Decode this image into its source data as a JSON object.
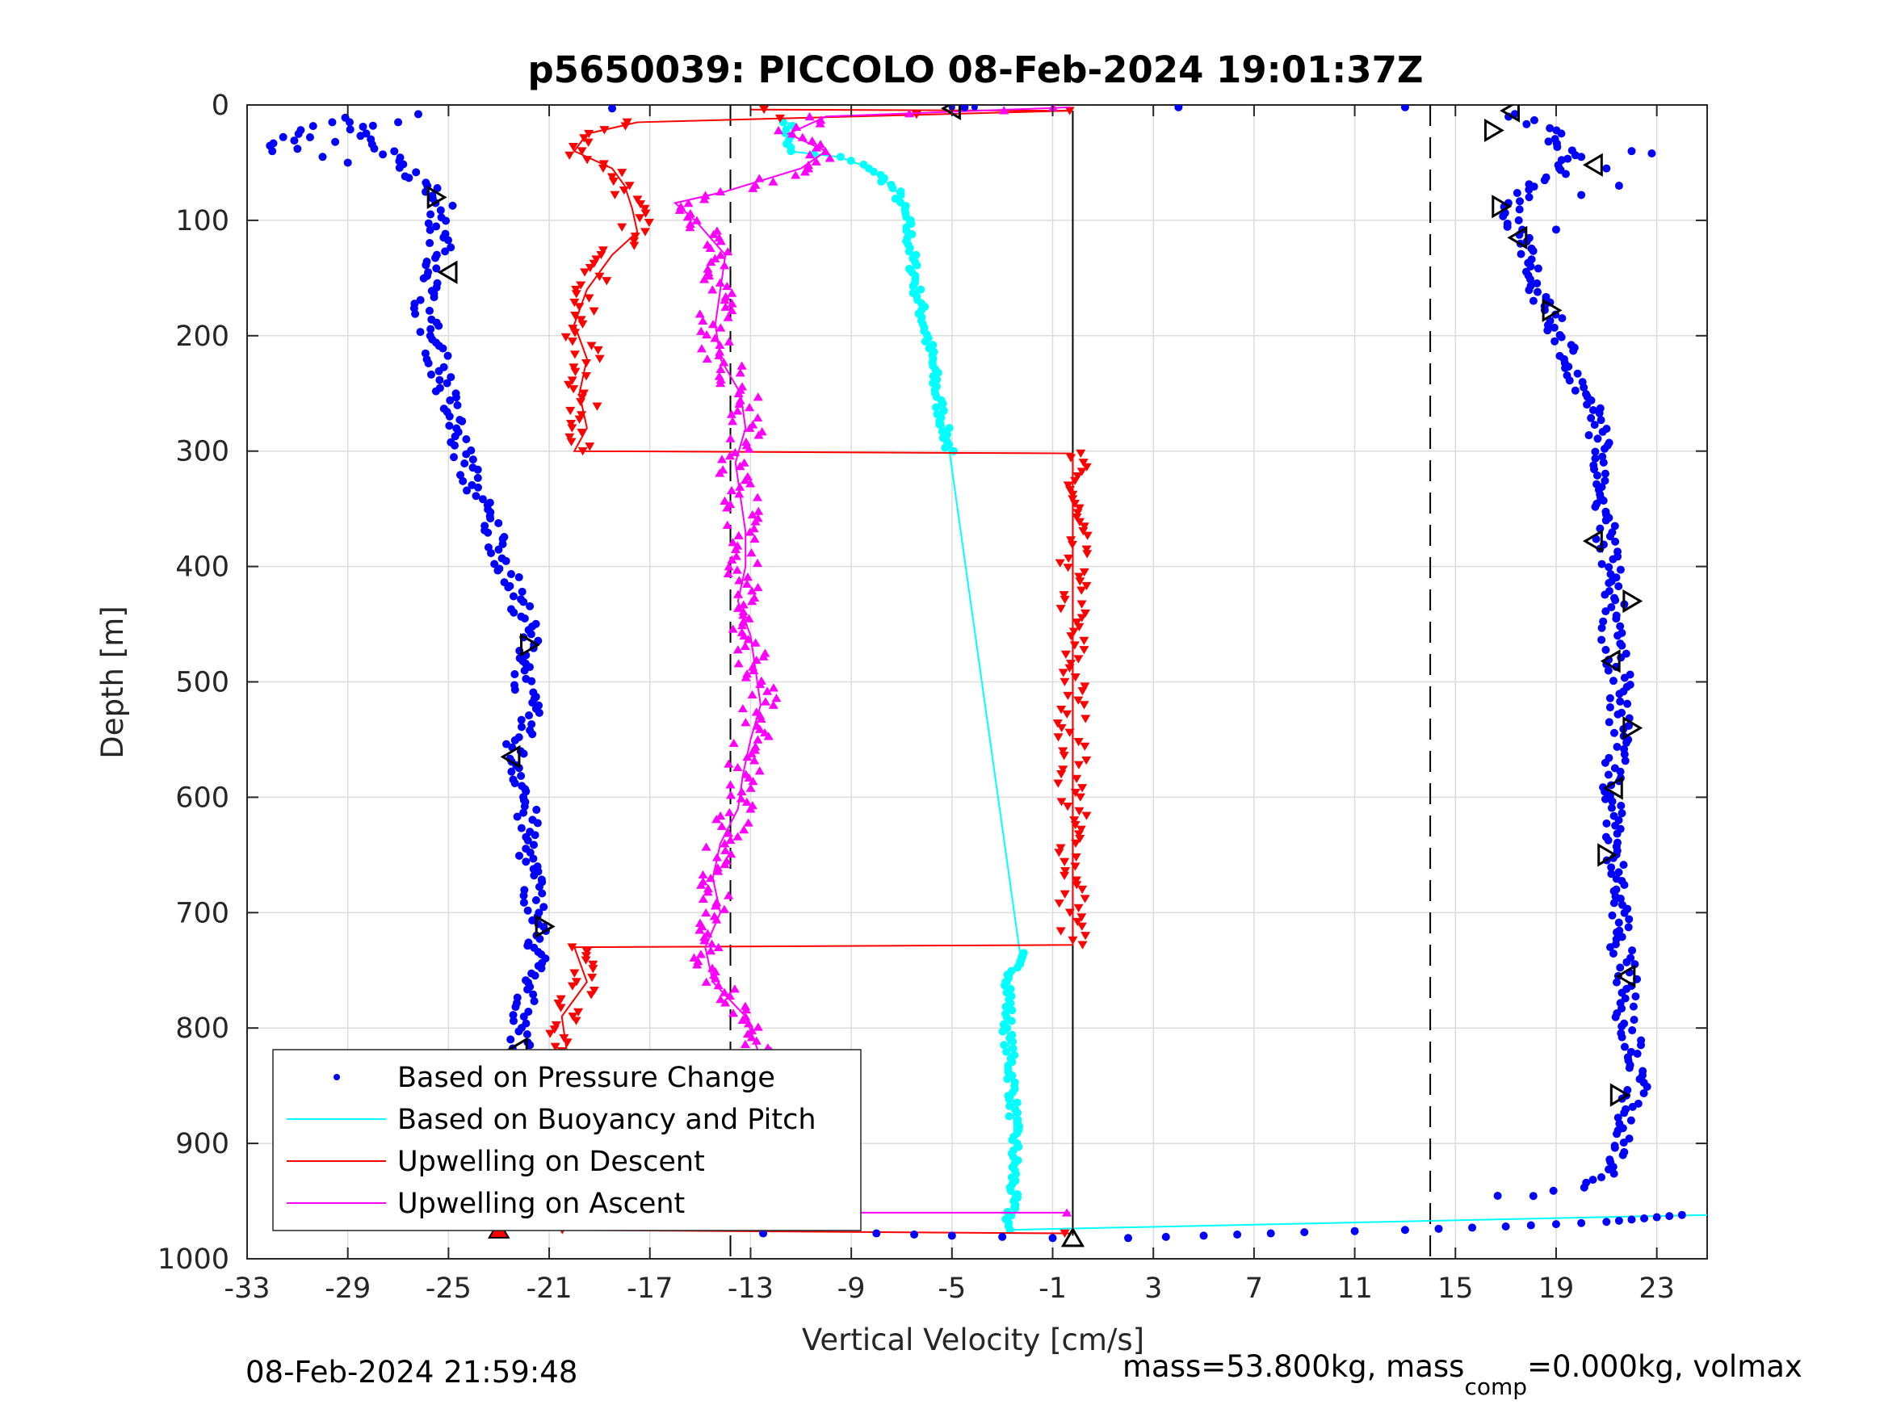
{
  "chart_data": {
    "type": "scatter",
    "title": "p5650039: PICCOLO 08-Feb-2024 19:01:37Z",
    "xlabel": "Vertical Velocity [cm/s]",
    "ylabel": "Depth [m]",
    "xlim": [
      -33,
      25
    ],
    "ylim": [
      0,
      1000
    ],
    "y_reversed": true,
    "x_ticks": [
      -33,
      -29,
      -25,
      -21,
      -17,
      -13,
      -9,
      -5,
      -1,
      3,
      7,
      11,
      15,
      19,
      23
    ],
    "y_ticks": [
      0,
      100,
      200,
      300,
      400,
      500,
      600,
      700,
      800,
      900,
      1000
    ],
    "grid": true,
    "legend_position": "bottom-left",
    "reference_lines": [
      {
        "x": -13.8,
        "style": "dashed",
        "color": "#000000"
      },
      {
        "x": 14.0,
        "style": "dashed",
        "color": "#000000"
      },
      {
        "x": -0.2,
        "style": "solid",
        "color": "#000000",
        "depth_range": [
          5,
          980
        ]
      }
    ],
    "series": [
      {
        "name": "Based on Pressure Change",
        "color": "#0000ff",
        "marker": "dot",
        "descent_trace": [
          [
            -32.5,
            35
          ],
          [
            -31.5,
            30
          ],
          [
            -30.5,
            22
          ],
          [
            -29,
            12
          ],
          [
            -27.5,
            40
          ],
          [
            -26.5,
            55
          ],
          [
            -26,
            70
          ],
          [
            -25.2,
            85
          ],
          [
            -25.5,
            100
          ],
          [
            -25.3,
            120
          ],
          [
            -25.5,
            145
          ],
          [
            -26,
            170
          ],
          [
            -25.7,
            200
          ],
          [
            -25.3,
            230
          ],
          [
            -25,
            260
          ],
          [
            -24.6,
            290
          ],
          [
            -24.2,
            320
          ],
          [
            -23.6,
            350
          ],
          [
            -23,
            380
          ],
          [
            -22.6,
            410
          ],
          [
            -22,
            440
          ],
          [
            -21.8,
            470
          ],
          [
            -22,
            500
          ],
          [
            -21.8,
            530
          ],
          [
            -22.4,
            560
          ],
          [
            -22,
            590
          ],
          [
            -21.9,
            620
          ],
          [
            -21.8,
            650
          ],
          [
            -21.6,
            680
          ],
          [
            -21.5,
            710
          ],
          [
            -21.5,
            740
          ],
          [
            -22,
            770
          ],
          [
            -22,
            800
          ],
          [
            -22.3,
            830
          ],
          [
            -22.5,
            860
          ],
          [
            -22.5,
            890
          ],
          [
            -22.3,
            920
          ],
          [
            -22.7,
            950
          ],
          [
            -23,
            972
          ]
        ],
        "ascent_trace": [
          [
            24,
            962
          ],
          [
            21,
            968
          ],
          [
            17,
            972
          ],
          [
            13,
            975
          ],
          [
            9,
            977
          ],
          [
            5,
            980
          ],
          [
            2,
            982
          ],
          [
            -1,
            982
          ],
          [
            -3,
            981
          ],
          [
            -5,
            980
          ],
          [
            -8,
            978
          ],
          [
            16.5,
            945
          ],
          [
            18.5,
            945
          ],
          [
            20.5,
            935
          ],
          [
            21.5,
            920
          ],
          [
            21.8,
            880
          ],
          [
            22.2,
            850
          ],
          [
            22,
            820
          ],
          [
            21.8,
            790
          ],
          [
            21.8,
            760
          ],
          [
            21.6,
            730
          ],
          [
            21.6,
            700
          ],
          [
            21.3,
            670
          ],
          [
            21.3,
            640
          ],
          [
            21.3,
            610
          ],
          [
            21.2,
            580
          ],
          [
            21.5,
            550
          ],
          [
            21.5,
            520
          ],
          [
            21.5,
            490
          ],
          [
            21.2,
            460
          ],
          [
            21.3,
            430
          ],
          [
            21.2,
            400
          ],
          [
            21,
            370
          ],
          [
            21,
            340
          ],
          [
            20.5,
            310
          ],
          [
            20.8,
            280
          ],
          [
            20,
            250
          ],
          [
            19.5,
            220
          ],
          [
            19,
            190
          ],
          [
            18.2,
            160
          ],
          [
            17.8,
            130
          ],
          [
            17.2,
            100
          ],
          [
            17.5,
            80
          ],
          [
            19,
            60
          ],
          [
            19.5,
            40
          ],
          [
            18.5,
            20
          ],
          [
            17.2,
            8
          ]
        ],
        "outliers": [
          [
            -18.5,
            3
          ],
          [
            -12.5,
            978
          ],
          [
            13,
            2
          ],
          [
            4,
            2
          ],
          [
            -4.5,
            2
          ]
        ]
      },
      {
        "name": "Based on Buoyancy and Pitch",
        "color": "#00ffff",
        "marker": "line",
        "points": [
          [
            -11.5,
            15
          ],
          [
            -11.5,
            40
          ],
          [
            -9.5,
            45
          ],
          [
            -8.2,
            55
          ],
          [
            -7.2,
            75
          ],
          [
            -6.8,
            100
          ],
          [
            -6.6,
            130
          ],
          [
            -6.4,
            160
          ],
          [
            -6.1,
            190
          ],
          [
            -5.8,
            220
          ],
          [
            -5.6,
            250
          ],
          [
            -5.3,
            280
          ],
          [
            -5.1,
            300
          ],
          [
            -2.3,
            735
          ],
          [
            -2.7,
            760
          ],
          [
            -2.8,
            800
          ],
          [
            -2.6,
            850
          ],
          [
            -2.5,
            900
          ],
          [
            -2.6,
            950
          ],
          [
            -2.8,
            975
          ],
          [
            25,
            962
          ]
        ]
      },
      {
        "name": "Upwelling on Descent",
        "color": "#ff0000",
        "marker": "triangle-down",
        "points": [
          [
            -13,
            4
          ],
          [
            -0.3,
            5
          ],
          [
            -17.5,
            15
          ],
          [
            -19.5,
            25
          ],
          [
            -20,
            40
          ],
          [
            -18.5,
            55
          ],
          [
            -18,
            70
          ],
          [
            -17.7,
            90
          ],
          [
            -17.5,
            110
          ],
          [
            -18.5,
            130
          ],
          [
            -19.5,
            160
          ],
          [
            -20,
            190
          ],
          [
            -19.5,
            220
          ],
          [
            -19.8,
            250
          ],
          [
            -19.5,
            280
          ],
          [
            -20,
            300
          ],
          [
            -0.2,
            302
          ],
          [
            -0.2,
            500
          ],
          [
            -0.2,
            728
          ],
          [
            -20,
            730
          ],
          [
            -19.5,
            760
          ],
          [
            -20.5,
            790
          ],
          [
            -20.3,
            820
          ],
          [
            -20,
            850
          ],
          [
            -20.4,
            880
          ],
          [
            -20.2,
            910
          ],
          [
            -20.5,
            940
          ],
          [
            -20.2,
            960
          ],
          [
            -20.8,
            975
          ],
          [
            -0.3,
            978
          ]
        ],
        "end_marker": [
          -23,
          975
        ]
      },
      {
        "name": "Upwelling on Ascent",
        "color": "#ff00ff",
        "marker": "triangle-up",
        "points": [
          [
            -0.3,
            960
          ],
          [
            -15,
            960
          ],
          [
            -13.3,
            940
          ],
          [
            -12.5,
            910
          ],
          [
            -12.2,
            880
          ],
          [
            -12.4,
            850
          ],
          [
            -12.7,
            820
          ],
          [
            -13.2,
            790
          ],
          [
            -14.5,
            760
          ],
          [
            -14.8,
            730
          ],
          [
            -14.2,
            700
          ],
          [
            -14.5,
            670
          ],
          [
            -14.2,
            640
          ],
          [
            -13.5,
            610
          ],
          [
            -13.3,
            580
          ],
          [
            -13,
            550
          ],
          [
            -12.6,
            520
          ],
          [
            -12.8,
            490
          ],
          [
            -13,
            460
          ],
          [
            -13.5,
            430
          ],
          [
            -13.2,
            400
          ],
          [
            -13.2,
            370
          ],
          [
            -13.4,
            340
          ],
          [
            -13.6,
            310
          ],
          [
            -13.2,
            280
          ],
          [
            -13.4,
            250
          ],
          [
            -14.2,
            220
          ],
          [
            -14.4,
            190
          ],
          [
            -14.2,
            160
          ],
          [
            -14,
            130
          ],
          [
            -15.2,
            100
          ],
          [
            -16,
            85
          ],
          [
            -14,
            75
          ],
          [
            -11,
            55
          ],
          [
            -10,
            40
          ],
          [
            -11.5,
            25
          ],
          [
            -10,
            10
          ],
          [
            -0.3,
            2
          ]
        ]
      }
    ],
    "annotation_triangles": [
      [
        -5,
        3
      ],
      [
        -25.5,
        80
      ],
      [
        -25,
        145
      ],
      [
        -21.8,
        468
      ],
      [
        -22.5,
        565
      ],
      [
        -21.2,
        712
      ],
      [
        -22.2,
        818
      ],
      [
        -21.5,
        962
      ],
      [
        17.2,
        5
      ],
      [
        16.5,
        22
      ],
      [
        20.5,
        52
      ],
      [
        16.8,
        88
      ],
      [
        17.5,
        115
      ],
      [
        18.8,
        178
      ],
      [
        20.5,
        378
      ],
      [
        22,
        430
      ],
      [
        21.2,
        482
      ],
      [
        22,
        540
      ],
      [
        21.3,
        592
      ],
      [
        21,
        650
      ],
      [
        21.8,
        755
      ],
      [
        21.5,
        858
      ],
      [
        -0.2,
        982
      ]
    ],
    "annotations": [
      {
        "text": "08-Feb-2024 21:59:48",
        "position": "bottom-left"
      },
      {
        "text_parts": [
          "mass=53.800kg, mass",
          "comp",
          "=0.000kg, volmax"
        ],
        "position": "bottom-right"
      }
    ]
  }
}
